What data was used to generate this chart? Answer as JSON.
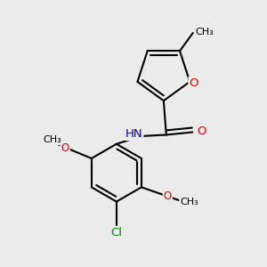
{
  "bg_color": "#ebebeb",
  "bond_color": "#000000",
  "bond_width": 1.5,
  "atom_colors": {
    "O": "#e00000",
    "N": "#0000cc",
    "Cl": "#008800",
    "C": "#000000",
    "H": "#404040"
  },
  "font_size": 8.5,
  "fig_size": [
    3.0,
    3.0
  ],
  "dpi": 100,
  "xlim": [
    0,
    10
  ],
  "ylim": [
    0,
    10
  ]
}
